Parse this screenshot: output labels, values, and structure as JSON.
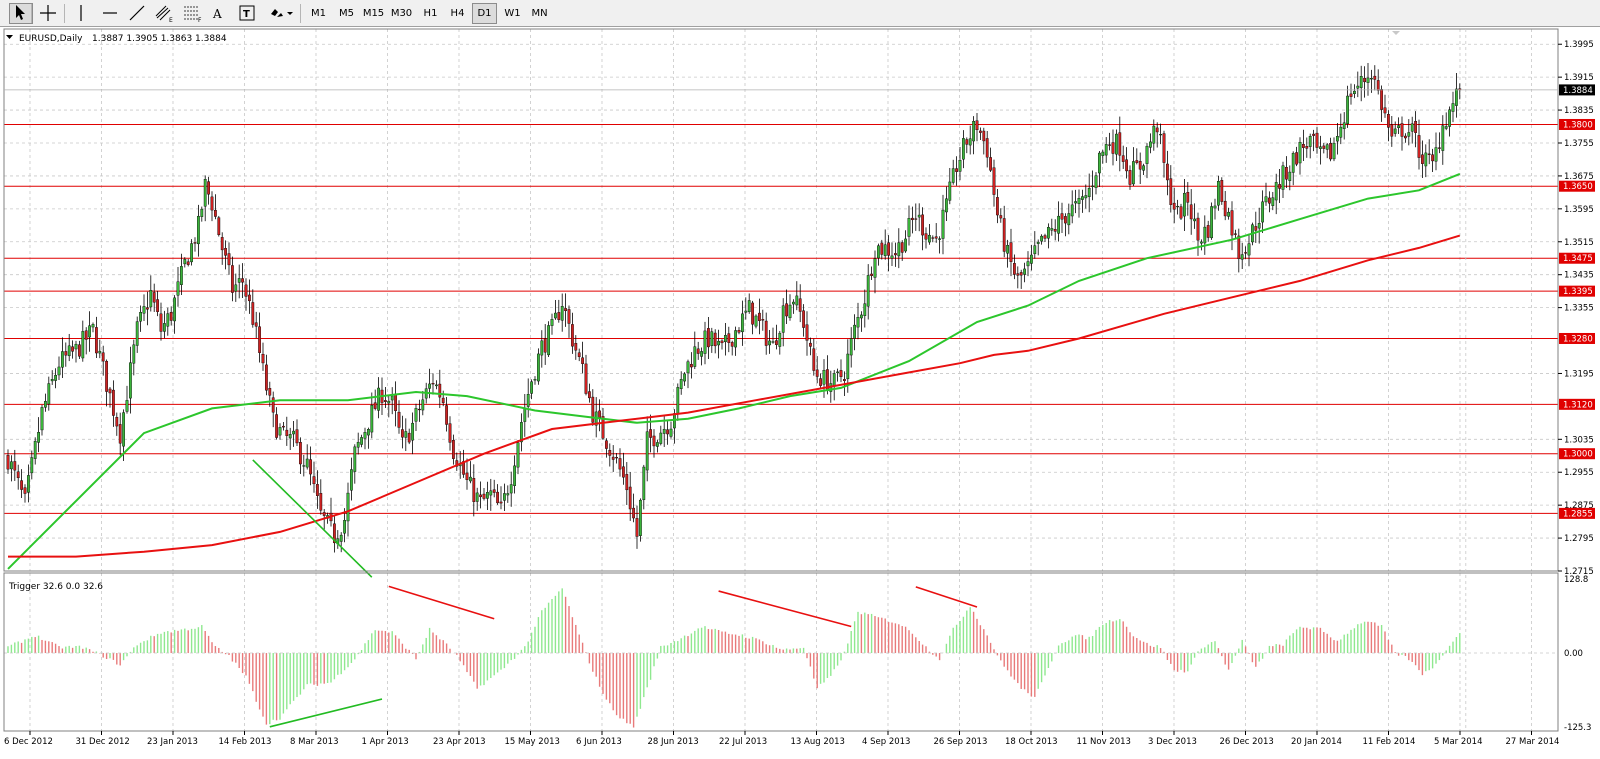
{
  "toolbar": {
    "tools": [
      {
        "name": "cursor-tool-button",
        "icon": "cursor-arrow-icon"
      },
      {
        "name": "crosshair-tool-button",
        "icon": "crosshair-icon"
      },
      {
        "name": "vertical-line-tool-button",
        "icon": "vertical-line-icon"
      },
      {
        "name": "horizontal-line-tool-button",
        "icon": "horizontal-line-icon"
      },
      {
        "name": "trendline-tool-button",
        "icon": "trendline-icon"
      },
      {
        "name": "equidistant-channel-tool-button",
        "icon": "channel-icon"
      },
      {
        "name": "fibonacci-tool-button",
        "icon": "fibonacci-icon"
      },
      {
        "name": "text-tool-button",
        "icon": "text-icon",
        "label": "A"
      },
      {
        "name": "text-label-tool-button",
        "icon": "text-label-icon"
      },
      {
        "name": "arrows-tool-button",
        "icon": "arrows-dropdown-icon"
      }
    ],
    "timeframes": [
      "M1",
      "M5",
      "M15",
      "M30",
      "H1",
      "H4",
      "D1",
      "W1",
      "MN"
    ],
    "active_timeframe": "D1"
  },
  "header": {
    "symbol": "EURUSD,Daily",
    "ohlc": "1.3887 1.3905 1.3863 1.3884"
  },
  "indicator": {
    "label": "Trigger 32.6 0.0 32.6"
  },
  "current_price": "1.3884",
  "colors": {
    "bull": "#3bb33b",
    "bear": "#cc2222",
    "ma_fast": "#2cc62c",
    "ma_slow": "#e81010",
    "level_line": "#e00000",
    "osc_pos": "#8fe88f",
    "osc_neg": "#e87a7a"
  },
  "chart_data": {
    "type": "candlestick",
    "symbol": "EURUSD",
    "timeframe": "Daily",
    "ylim": [
      1.2715,
      1.4032
    ],
    "y_ticks": [
      "1.3995",
      "1.3915",
      "1.3835",
      "1.3755",
      "1.3675",
      "1.3595",
      "1.3515",
      "1.3435",
      "1.3355",
      "1.3195",
      "1.3035",
      "1.2955",
      "1.2875",
      "1.2795",
      "1.2715"
    ],
    "x_ticks": [
      "6 Dec 2012",
      "31 Dec 2012",
      "23 Jan 2013",
      "14 Feb 2013",
      "8 Mar 2013",
      "1 Apr 2013",
      "23 Apr 2013",
      "15 May 2013",
      "6 Jun 2013",
      "28 Jun 2013",
      "22 Jul 2013",
      "13 Aug 2013",
      "4 Sep 2013",
      "26 Sep 2013",
      "18 Oct 2013",
      "11 Nov 2013",
      "3 Dec 2013",
      "26 Dec 2013",
      "20 Jan 2014",
      "11 Feb 2014",
      "5 Mar 2014",
      "27 Mar 2014"
    ],
    "horizontal_levels": [
      "1.3800",
      "1.3650",
      "1.3475",
      "1.3395",
      "1.3280",
      "1.3120",
      "1.3000",
      "1.2855"
    ],
    "close_anchors": [
      [
        0,
        1.299
      ],
      [
        5,
        1.288
      ],
      [
        10,
        1.31
      ],
      [
        15,
        1.322
      ],
      [
        20,
        1.325
      ],
      [
        25,
        1.33
      ],
      [
        30,
        1.314
      ],
      [
        33,
        1.305
      ],
      [
        38,
        1.33
      ],
      [
        42,
        1.339
      ],
      [
        45,
        1.33
      ],
      [
        48,
        1.334
      ],
      [
        52,
        1.346
      ],
      [
        56,
        1.355
      ],
      [
        58,
        1.365
      ],
      [
        60,
        1.361
      ],
      [
        63,
        1.35
      ],
      [
        66,
        1.34
      ],
      [
        69,
        1.342
      ],
      [
        72,
        1.333
      ],
      [
        75,
        1.32
      ],
      [
        78,
        1.308
      ],
      [
        81,
        1.304
      ],
      [
        84,
        1.303
      ],
      [
        88,
        1.297
      ],
      [
        92,
        1.285
      ],
      [
        96,
        1.28
      ],
      [
        99,
        1.284
      ],
      [
        102,
        1.3
      ],
      [
        106,
        1.308
      ],
      [
        110,
        1.315
      ],
      [
        113,
        1.312
      ],
      [
        116,
        1.302
      ],
      [
        119,
        1.307
      ],
      [
        122,
        1.313
      ],
      [
        125,
        1.318
      ],
      [
        128,
        1.313
      ],
      [
        131,
        1.301
      ],
      [
        135,
        1.293
      ],
      [
        139,
        1.288
      ],
      [
        142,
        1.29
      ],
      [
        145,
        1.286
      ],
      [
        148,
        1.295
      ],
      [
        151,
        1.308
      ],
      [
        154,
        1.318
      ],
      [
        157,
        1.326
      ],
      [
        160,
        1.33
      ],
      [
        163,
        1.337
      ],
      [
        166,
        1.328
      ],
      [
        169,
        1.32
      ],
      [
        172,
        1.31
      ],
      [
        175,
        1.305
      ],
      [
        178,
        1.3
      ],
      [
        182,
        1.292
      ],
      [
        185,
        1.28
      ],
      [
        188,
        1.303
      ],
      [
        191,
        1.305
      ],
      [
        195,
        1.308
      ],
      [
        199,
        1.32
      ],
      [
        202,
        1.325
      ],
      [
        206,
        1.328
      ],
      [
        210,
        1.325
      ],
      [
        214,
        1.33
      ],
      [
        218,
        1.335
      ],
      [
        222,
        1.33
      ],
      [
        225,
        1.326
      ],
      [
        228,
        1.335
      ],
      [
        231,
        1.338
      ],
      [
        234,
        1.332
      ],
      [
        237,
        1.32
      ],
      [
        240,
        1.318
      ],
      [
        243,
        1.317
      ],
      [
        246,
        1.32
      ],
      [
        249,
        1.33
      ],
      [
        252,
        1.338
      ],
      [
        255,
        1.35
      ],
      [
        258,
        1.35
      ],
      [
        261,
        1.349
      ],
      [
        264,
        1.353
      ],
      [
        267,
        1.358
      ],
      [
        270,
        1.354
      ],
      [
        273,
        1.352
      ],
      [
        276,
        1.36
      ],
      [
        279,
        1.37
      ],
      [
        282,
        1.376
      ],
      [
        285,
        1.38
      ],
      [
        288,
        1.374
      ],
      [
        291,
        1.358
      ],
      [
        294,
        1.348
      ],
      [
        297,
        1.342
      ],
      [
        300,
        1.345
      ],
      [
        303,
        1.35
      ],
      [
        306,
        1.353
      ],
      [
        309,
        1.356
      ],
      [
        312,
        1.359
      ],
      [
        315,
        1.36
      ],
      [
        318,
        1.364
      ],
      [
        321,
        1.372
      ],
      [
        324,
        1.376
      ],
      [
        327,
        1.375
      ],
      [
        330,
        1.368
      ],
      [
        333,
        1.37
      ],
      [
        336,
        1.376
      ],
      [
        338,
        1.38
      ],
      [
        341,
        1.365
      ],
      [
        344,
        1.358
      ],
      [
        347,
        1.362
      ],
      [
        350,
        1.352
      ],
      [
        353,
        1.355
      ],
      [
        356,
        1.365
      ],
      [
        359,
        1.358
      ],
      [
        362,
        1.349
      ],
      [
        365,
        1.352
      ],
      [
        368,
        1.358
      ],
      [
        371,
        1.362
      ],
      [
        374,
        1.366
      ],
      [
        377,
        1.37
      ],
      [
        380,
        1.374
      ],
      [
        383,
        1.376
      ],
      [
        386,
        1.372
      ],
      [
        389,
        1.373
      ],
      [
        392,
        1.38
      ],
      [
        395,
        1.388
      ],
      [
        398,
        1.39
      ],
      [
        401,
        1.393
      ],
      [
        404,
        1.385
      ],
      [
        407,
        1.376
      ],
      [
        410,
        1.379
      ],
      [
        413,
        1.378
      ],
      [
        416,
        1.372
      ],
      [
        419,
        1.37
      ],
      [
        422,
        1.38
      ],
      [
        425,
        1.385
      ],
      [
        427,
        1.3884
      ]
    ],
    "moving_averages": [
      {
        "color": "green",
        "points": [
          [
            0,
            1.272
          ],
          [
            40,
            1.305
          ],
          [
            60,
            1.311
          ],
          [
            80,
            1.313
          ],
          [
            100,
            1.313
          ],
          [
            120,
            1.315
          ],
          [
            135,
            1.314
          ],
          [
            155,
            1.3105
          ],
          [
            170,
            1.309
          ],
          [
            185,
            1.3075
          ],
          [
            200,
            1.3085
          ],
          [
            215,
            1.311
          ],
          [
            230,
            1.314
          ],
          [
            245,
            1.316
          ],
          [
            265,
            1.3225
          ],
          [
            285,
            1.332
          ],
          [
            300,
            1.336
          ],
          [
            315,
            1.342
          ],
          [
            335,
            1.3475
          ],
          [
            360,
            1.352
          ],
          [
            380,
            1.357
          ],
          [
            400,
            1.362
          ],
          [
            415,
            1.364
          ],
          [
            427,
            1.368
          ]
        ]
      },
      {
        "color": "red",
        "points": [
          [
            0,
            1.275
          ],
          [
            20,
            1.275
          ],
          [
            40,
            1.2762
          ],
          [
            60,
            1.2778
          ],
          [
            80,
            1.281
          ],
          [
            100,
            1.286
          ],
          [
            120,
            1.293
          ],
          [
            140,
            1.3
          ],
          [
            160,
            1.306
          ],
          [
            180,
            1.308
          ],
          [
            200,
            1.31
          ],
          [
            220,
            1.313
          ],
          [
            240,
            1.316
          ],
          [
            260,
            1.319
          ],
          [
            280,
            1.322
          ],
          [
            290,
            1.324
          ],
          [
            300,
            1.325
          ],
          [
            315,
            1.328
          ],
          [
            340,
            1.334
          ],
          [
            360,
            1.338
          ],
          [
            380,
            1.342
          ],
          [
            400,
            1.347
          ],
          [
            415,
            1.35
          ],
          [
            427,
            1.353
          ]
        ]
      }
    ],
    "oscillator": {
      "name": "Trigger",
      "values_text": "32.6 0.0 32.6",
      "ylim": [
        -125.3,
        128.8
      ],
      "y_ticks": [
        "128.8",
        "0.00",
        "-125.3"
      ],
      "anchors": [
        [
          0,
          10
        ],
        [
          8,
          30
        ],
        [
          15,
          10
        ],
        [
          22,
          10
        ],
        [
          28,
          -5
        ],
        [
          33,
          -20
        ],
        [
          38,
          15
        ],
        [
          45,
          35
        ],
        [
          52,
          40
        ],
        [
          57,
          45
        ],
        [
          61,
          10
        ],
        [
          65,
          -5
        ],
        [
          70,
          -40
        ],
        [
          76,
          -120
        ],
        [
          80,
          -110
        ],
        [
          88,
          -55
        ],
        [
          95,
          -50
        ],
        [
          102,
          -10
        ],
        [
          108,
          40
        ],
        [
          113,
          35
        ],
        [
          117,
          10
        ],
        [
          120,
          -10
        ],
        [
          124,
          40
        ],
        [
          128,
          20
        ],
        [
          132,
          -5
        ],
        [
          138,
          -60
        ],
        [
          145,
          -30
        ],
        [
          152,
          10
        ],
        [
          157,
          70
        ],
        [
          163,
          110
        ],
        [
          168,
          30
        ],
        [
          172,
          -30
        ],
        [
          176,
          -80
        ],
        [
          180,
          -110
        ],
        [
          184,
          -125
        ],
        [
          188,
          -60
        ],
        [
          192,
          10
        ],
        [
          198,
          25
        ],
        [
          204,
          45
        ],
        [
          210,
          35
        ],
        [
          216,
          30
        ],
        [
          222,
          20
        ],
        [
          228,
          5
        ],
        [
          234,
          10
        ],
        [
          238,
          -60
        ],
        [
          242,
          -40
        ],
        [
          246,
          0
        ],
        [
          250,
          70
        ],
        [
          256,
          60
        ],
        [
          262,
          50
        ],
        [
          266,
          35
        ],
        [
          270,
          10
        ],
        [
          274,
          -10
        ],
        [
          278,
          40
        ],
        [
          283,
          80
        ],
        [
          288,
          30
        ],
        [
          292,
          -15
        ],
        [
          298,
          -60
        ],
        [
          302,
          -75
        ],
        [
          305,
          -40
        ],
        [
          309,
          15
        ],
        [
          314,
          30
        ],
        [
          318,
          25
        ],
        [
          322,
          50
        ],
        [
          327,
          60
        ],
        [
          331,
          30
        ],
        [
          335,
          15
        ],
        [
          339,
          10
        ],
        [
          343,
          -30
        ],
        [
          347,
          -30
        ],
        [
          351,
          10
        ],
        [
          355,
          20
        ],
        [
          359,
          -30
        ],
        [
          363,
          20
        ],
        [
          367,
          -25
        ],
        [
          371,
          10
        ],
        [
          375,
          15
        ],
        [
          380,
          45
        ],
        [
          386,
          40
        ],
        [
          391,
          20
        ],
        [
          395,
          40
        ],
        [
          399,
          55
        ],
        [
          404,
          45
        ],
        [
          408,
          0
        ],
        [
          412,
          -10
        ],
        [
          416,
          -35
        ],
        [
          420,
          -20
        ],
        [
          424,
          15
        ],
        [
          427,
          32.6
        ]
      ]
    },
    "annotations": [
      {
        "pane": "price",
        "type": "trendline",
        "color": "green",
        "from": [
          72,
          1.2985
        ],
        "to": [
          107,
          1.27
        ]
      },
      {
        "pane": "oscillator",
        "type": "trendline",
        "color": "red",
        "from": [
          112,
          113
        ],
        "to": [
          143,
          58
        ]
      },
      {
        "pane": "oscillator",
        "type": "trendline",
        "color": "green",
        "from": [
          77,
          -125
        ],
        "to": [
          110,
          -78
        ]
      },
      {
        "pane": "oscillator",
        "type": "trendline",
        "color": "red",
        "from": [
          209,
          105
        ],
        "to": [
          248,
          45
        ]
      },
      {
        "pane": "oscillator",
        "type": "trendline",
        "color": "red",
        "from": [
          267,
          112
        ],
        "to": [
          285,
          78
        ]
      }
    ]
  }
}
